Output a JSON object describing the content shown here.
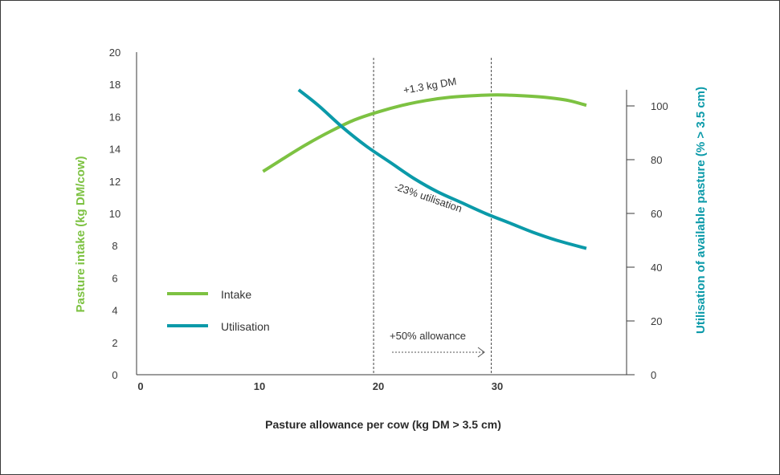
{
  "chart_data": {
    "type": "line",
    "xlabel": "Pasture allowance per cow (kg DM > 3.5 cm)",
    "ylabel": "Pasture intake (kg DM/cow)",
    "y2label": "Utilisation of available pasture (% > 3.5 cm)",
    "xlim": [
      0,
      40
    ],
    "ylim": [
      0,
      20
    ],
    "y2lim": [
      0,
      120
    ],
    "x_ticks": [
      "0",
      "10",
      "20",
      "30"
    ],
    "x_tick_values": [
      0,
      10,
      20,
      30
    ],
    "y_ticks": [
      "0",
      "2",
      "4",
      "6",
      "8",
      "10",
      "12",
      "14",
      "16",
      "18",
      "20"
    ],
    "y_tick_values": [
      0,
      2,
      4,
      6,
      8,
      10,
      12,
      14,
      16,
      18,
      20
    ],
    "y2_ticks": [
      "0",
      "20",
      "40",
      "60",
      "80",
      "100"
    ],
    "y2_tick_values": [
      0,
      20,
      40,
      60,
      80,
      100
    ],
    "series": [
      {
        "name": "Intake",
        "axis": "left",
        "color": "#7dc242",
        "x": [
          10.3,
          12,
          14,
          16,
          18,
          20,
          22,
          24,
          26,
          28,
          30,
          32,
          34,
          36,
          37.5
        ],
        "y": [
          12.6,
          13.4,
          14.3,
          15.1,
          15.8,
          16.3,
          16.7,
          17.0,
          17.2,
          17.3,
          17.35,
          17.3,
          17.2,
          17.0,
          16.7
        ]
      },
      {
        "name": "Utilisation",
        "axis": "right",
        "color": "#0b9aa9",
        "x": [
          13.3,
          15,
          17,
          19,
          21,
          23,
          25,
          27,
          29,
          31,
          33,
          35,
          37.5
        ],
        "y": [
          106,
          100,
          92,
          85,
          79,
          73,
          68,
          64,
          60,
          56.5,
          53,
          50,
          47
        ]
      }
    ],
    "vlines": [
      19.6,
      29.5
    ],
    "annotations": {
      "intake_gain": "+1.3 kg DM",
      "utilisation_drop": "-23% utilisation",
      "allowance": "+50% allowance"
    },
    "legend_position": "left-bottom",
    "grid": false
  }
}
